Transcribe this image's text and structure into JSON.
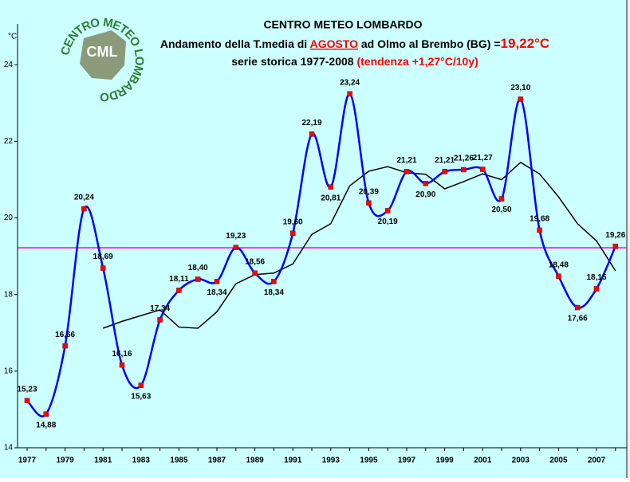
{
  "chart_data": {
    "type": "line",
    "title": [
      "CENTRO METEO LOMBARDO",
      "Andamento della T.media di ",
      "AGOSTO",
      " ad Olmo al Brembo (BG) =",
      "19,22°C",
      "serie storica 1977-2008 ",
      "(tendenza +1,27°C/10y)"
    ],
    "logo": {
      "ring": "CENTRO METEO LOMBARDO",
      "initials": "CML"
    },
    "y_label": "°C",
    "categories": [
      "1977",
      null,
      "1979",
      null,
      "1981",
      null,
      "1983",
      null,
      "1985",
      null,
      "1987",
      null,
      "1989",
      null,
      "1991",
      null,
      "1993",
      null,
      "1995",
      null,
      "1997",
      null,
      "1999",
      null,
      "2001",
      null,
      "2003",
      null,
      "2005",
      null,
      "2007",
      null
    ],
    "series": [
      {
        "color": "#0000ff",
        "marker_color": "#ff0000",
        "values": [
          15.23,
          14.88,
          16.66,
          20.24,
          18.69,
          16.16,
          15.63,
          17.34,
          18.11,
          18.4,
          18.34,
          19.23,
          18.56,
          18.34,
          19.6,
          22.19,
          20.81,
          23.24,
          20.39,
          20.19,
          21.21,
          20.9,
          21.21,
          21.26,
          21.27,
          20.5,
          23.1,
          19.68,
          18.48,
          17.66,
          18.15,
          19.26
        ],
        "value_labels": [
          "15,23",
          "14,88",
          "16,66",
          "20,24",
          "18,69",
          "16,16",
          "15,63",
          "17,34",
          "18,11",
          "18,40",
          "18,34",
          "19,23",
          "18,56",
          "18,34",
          "19,60",
          "22,19",
          "20,81",
          "23,24",
          "20,39",
          "20,19",
          "21,21",
          "20,90",
          "21,21",
          "21,26",
          "21,27",
          "20,50",
          "23,10",
          "19,68",
          "18,48",
          "17,66",
          "18,15",
          "19,26"
        ]
      },
      {
        "color": "#000000",
        "values": [
          null,
          null,
          null,
          null,
          17.12,
          17.3,
          17.45,
          17.6,
          17.15,
          17.12,
          17.55,
          18.28,
          18.52,
          18.56,
          18.8,
          19.57,
          19.85,
          20.84,
          21.22,
          21.34,
          21.18,
          21.14,
          20.76,
          20.95,
          21.15,
          21.0,
          21.45,
          21.15,
          20.55,
          19.85,
          19.4,
          18.62
        ]
      }
    ],
    "mean": 19.22,
    "mean_color": "#ff00ff",
    "ylim": [
      14,
      24.9
    ],
    "yticks": [
      14,
      16,
      18,
      20,
      22,
      24
    ]
  }
}
